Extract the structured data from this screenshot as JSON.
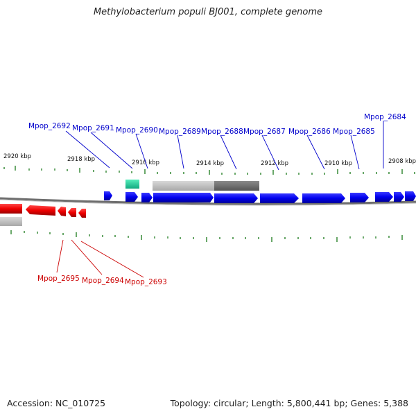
{
  "title": "Methylobacterium populi BJ001, complete genome",
  "accession_text": "Accession: NC_010725",
  "topology_text": "Topology: circular; Length: 5,800,441 bp; Genes: 5,388",
  "kbp_labels": [
    "2920 kbp",
    "2918 kbp",
    "2916 kbp",
    "2914 kbp",
    "2912 kbp",
    "2910 kbp",
    "2908 kbp"
  ],
  "forward_genes": [
    "Mpop_2692",
    "Mpop_2691",
    "Mpop_2690",
    "Mpop_2689",
    "Mpop_2688",
    "Mpop_2687",
    "Mpop_2686",
    "Mpop_2685",
    "Mpop_2684"
  ],
  "reverse_genes": [
    "Mpop_2695",
    "Mpop_2694",
    "Mpop_2693"
  ],
  "colors": {
    "forward_gene": "#0000ee",
    "reverse_gene": "#ee0000",
    "tick": "#1a7a1a",
    "backbone": "#777777",
    "rna_feature": "#22cc99",
    "feature_light": "#b5b5b5",
    "feature_dark": "#686868"
  }
}
